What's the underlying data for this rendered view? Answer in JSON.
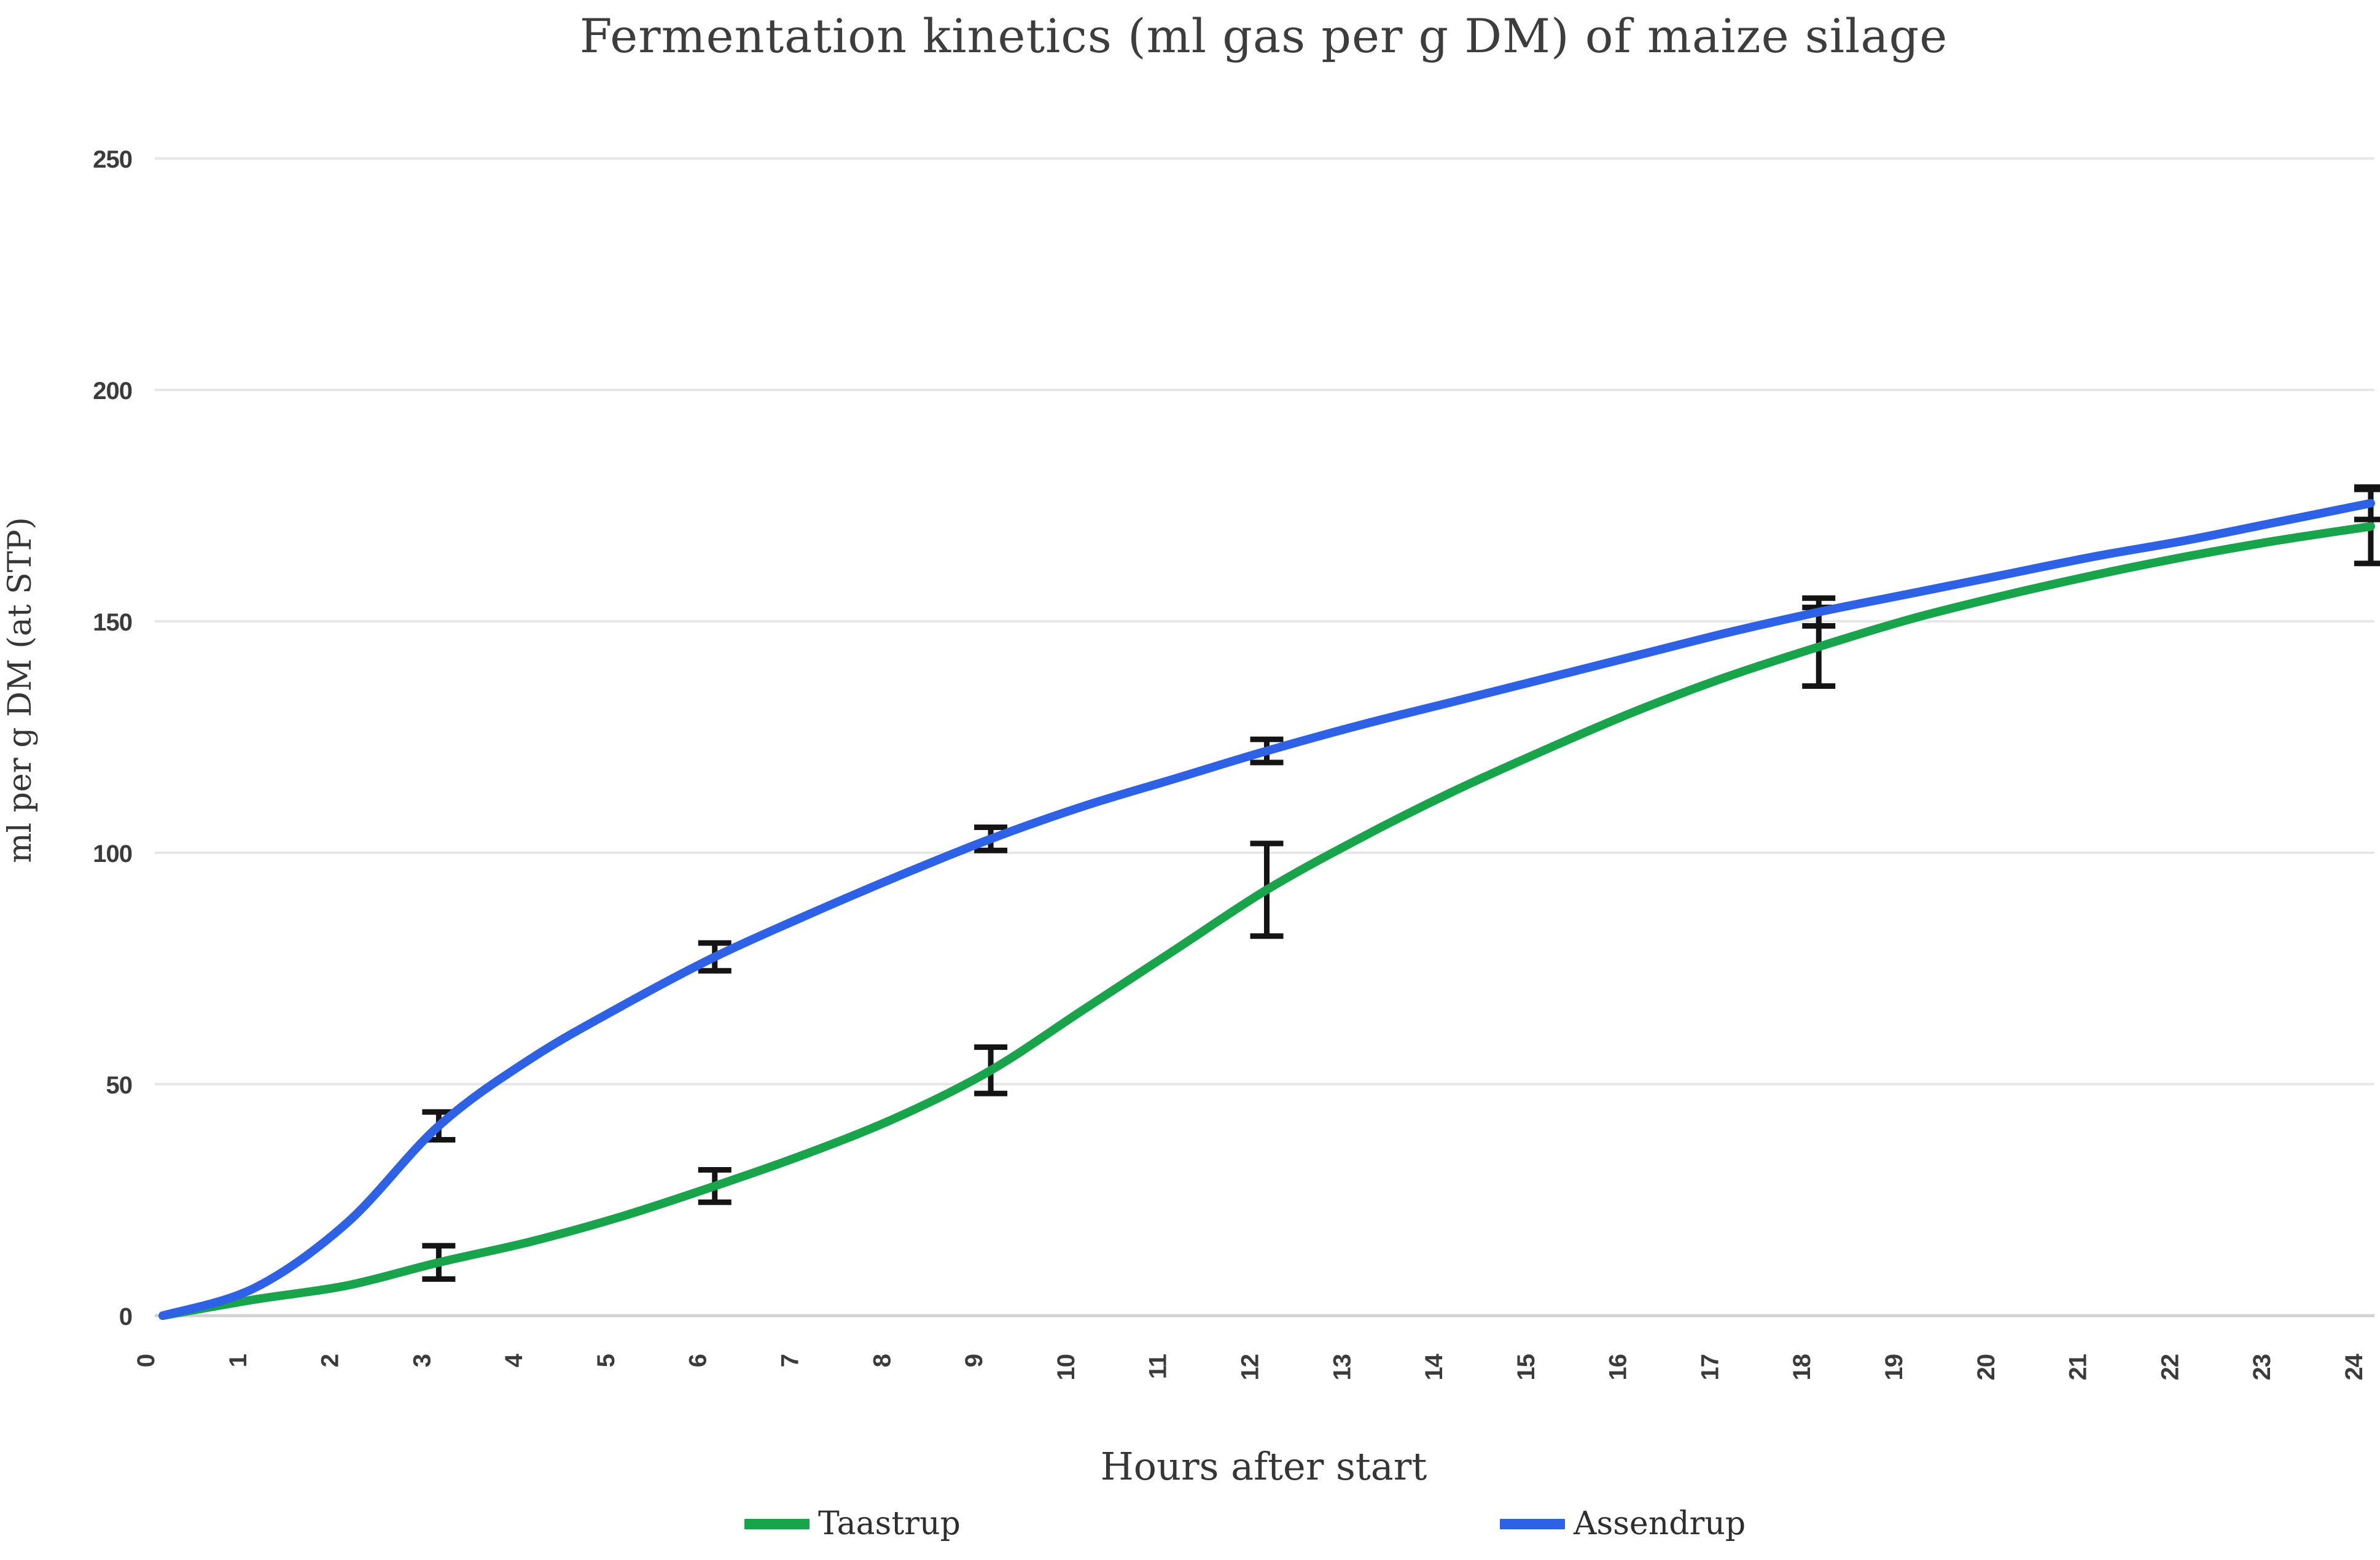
{
  "chart_data": {
    "type": "line",
    "title": "Fermentation kinetics (ml gas per g DM) of maize silage",
    "xlabel": "Hours after start",
    "ylabel": "ml per g DM (at STP)",
    "xlim": [
      0,
      24
    ],
    "ylim": [
      0,
      250
    ],
    "x_ticks": [
      0,
      1,
      2,
      3,
      4,
      5,
      6,
      7,
      8,
      9,
      10,
      11,
      12,
      13,
      14,
      15,
      16,
      17,
      18,
      19,
      20,
      21,
      22,
      23,
      24
    ],
    "y_ticks": [
      0,
      50,
      100,
      150,
      200,
      250
    ],
    "grid": "horizontal-only",
    "legend_position": "bottom",
    "x": [
      0,
      1,
      2,
      3,
      4,
      5,
      6,
      7,
      8,
      9,
      10,
      11,
      12,
      13,
      14,
      15,
      16,
      17,
      18,
      19,
      20,
      21,
      22,
      23,
      24
    ],
    "series": [
      {
        "name": "Taastrup",
        "color": "#17a44b",
        "values": [
          0,
          3.5,
          6.5,
          11.5,
          16,
          21.5,
          28,
          35,
          43,
          53,
          66,
          79,
          92,
          103,
          113,
          122,
          130.5,
          138,
          144.5,
          150.5,
          155.5,
          160,
          164,
          167.5,
          170.5
        ],
        "error_bars": [
          {
            "x": 3,
            "y": 11.5,
            "err": 3.6
          },
          {
            "x": 6,
            "y": 28,
            "err": 3.5
          },
          {
            "x": 9,
            "y": 53,
            "err": 5
          },
          {
            "x": 12,
            "y": 92,
            "err": 10
          },
          {
            "x": 18,
            "y": 144.5,
            "err": 8.5
          },
          {
            "x": 24,
            "y": 170.5,
            "err": 8
          }
        ]
      },
      {
        "name": "Assendrup",
        "color": "#2e62e6",
        "values": [
          0,
          6,
          20,
          41,
          55.5,
          67,
          77.5,
          86.5,
          95,
          103,
          110,
          116,
          122,
          127.5,
          132.5,
          137.5,
          142.5,
          147.5,
          152,
          156,
          160,
          164,
          167.5,
          171.5,
          175.5
        ],
        "error_bars": [
          {
            "x": 3,
            "y": 41,
            "err": 3
          },
          {
            "x": 6,
            "y": 77.5,
            "err": 3
          },
          {
            "x": 9,
            "y": 103,
            "err": 2.5
          },
          {
            "x": 12,
            "y": 122,
            "err": 2.5
          },
          {
            "x": 18,
            "y": 152,
            "err": 3
          },
          {
            "x": 24,
            "y": 175.5,
            "err": 3.5
          }
        ]
      }
    ]
  },
  "styles": {
    "background": "#ffffff",
    "grid_color": "#e7e7e7",
    "axis_color": "#d2d2d2",
    "tick_text_color": "#3b3b3b",
    "error_bar_color": "#141414"
  }
}
